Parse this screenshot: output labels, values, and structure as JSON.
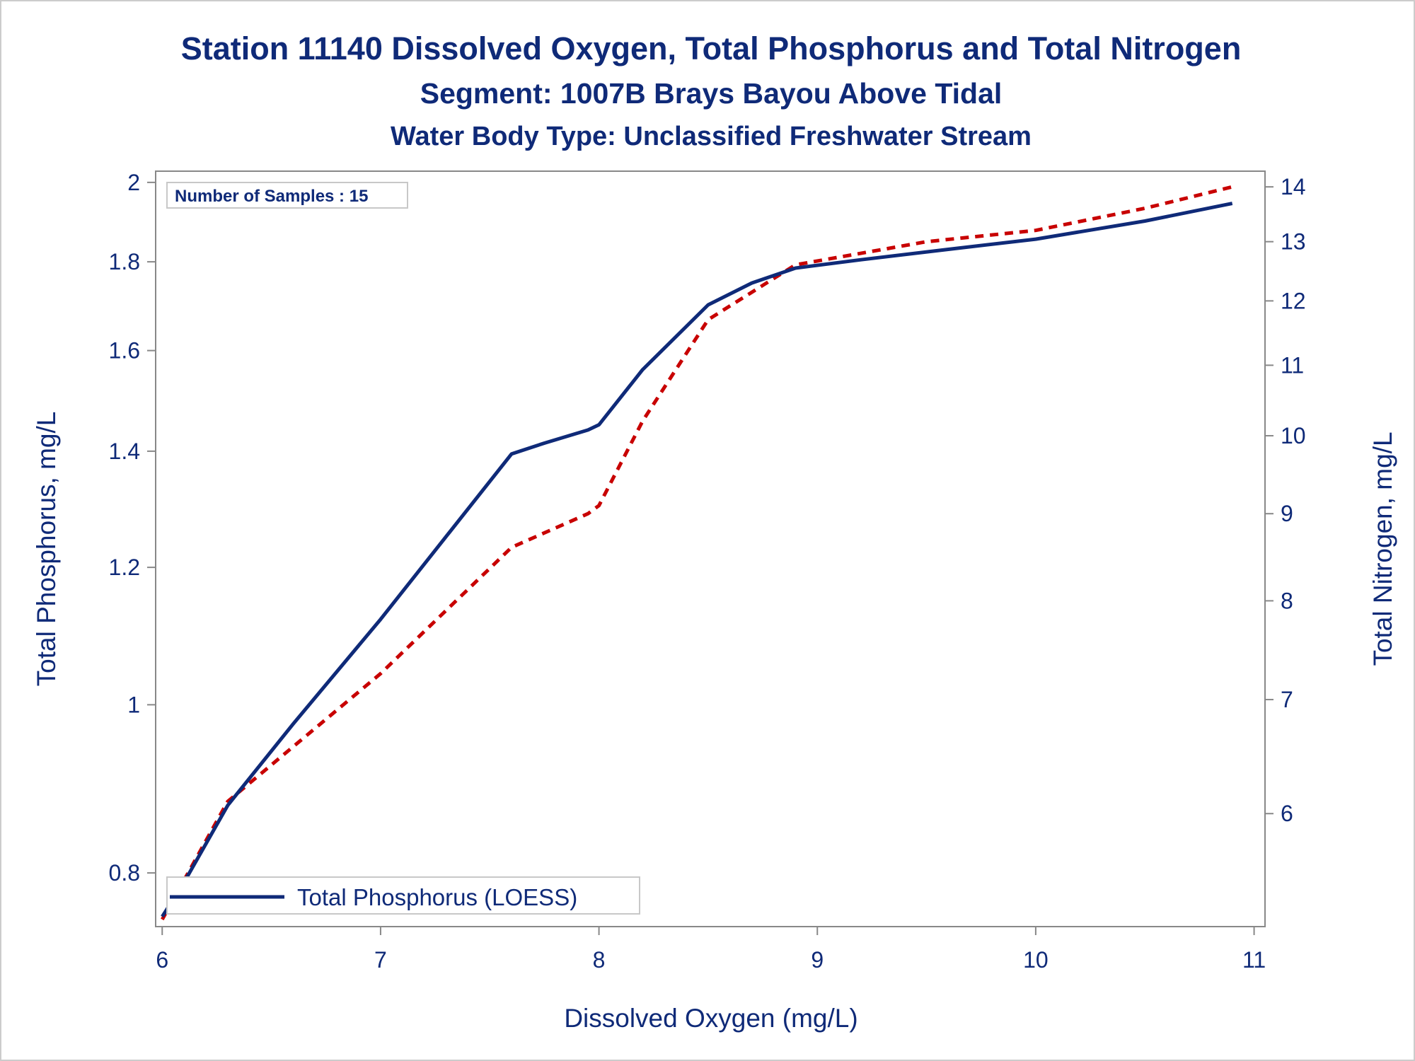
{
  "colors": {
    "text": "#0f2a78",
    "phosphorus_line": "#0f2a78",
    "nitrogen_line": "#c80000",
    "frame": "#888888"
  },
  "chart_data": {
    "type": "line",
    "title": "Station 11140  Dissolved Oxygen, Total Phosphorus and Total Nitrogen",
    "subtitle": "Segment: 1007B  Brays Bayou Above Tidal",
    "subtitle2": "Water Body Type: Unclassified Freshwater Stream",
    "xlabel": "Dissolved Oxygen (mg/L)",
    "ylabel_left": "Total Phosphorus, mg/L",
    "ylabel_right": "Total Nitrogen, mg/L",
    "xlim": [
      5.97,
      11.05
    ],
    "ylim_left": [
      0.745,
      2.03
    ],
    "ylim_right": [
      5.15,
      14.3
    ],
    "y_scale": "log",
    "x_ticks": [
      "6",
      "7",
      "8",
      "9",
      "10",
      "11"
    ],
    "y_left_ticks": [
      "0.8",
      "1",
      "1.2",
      "1.4",
      "1.6",
      "1.8",
      "2"
    ],
    "y_right_ticks": [
      "6",
      "7",
      "8",
      "9",
      "10",
      "11",
      "12",
      "13",
      "14"
    ],
    "sample_box_text": "Number of Samples : 15",
    "grid": false,
    "legend_position": "bottom-left",
    "series": [
      {
        "name": "Total Phosphorus (LOESS)",
        "axis": "left",
        "style": "solid",
        "color": "#0f2a78",
        "x": [
          6.0,
          6.1,
          6.3,
          6.6,
          7.0,
          7.3,
          7.6,
          7.75,
          7.95,
          8.0,
          8.2,
          8.5,
          8.7,
          8.9,
          9.2,
          9.6,
          10.0,
          10.5,
          10.9
        ],
        "y": [
          0.755,
          0.79,
          0.875,
          0.975,
          1.12,
          1.25,
          1.395,
          1.415,
          1.44,
          1.45,
          1.56,
          1.7,
          1.75,
          1.785,
          1.805,
          1.83,
          1.855,
          1.9,
          1.945
        ]
      },
      {
        "name": "Total Nitrogen",
        "axis": "right",
        "style": "dashed",
        "color": "#c80000",
        "x": [
          6.0,
          6.3,
          7.0,
          7.6,
          7.95,
          8.0,
          8.2,
          8.5,
          8.9,
          9.5,
          10.0,
          10.5,
          10.9
        ],
        "y": [
          5.2,
          6.1,
          7.25,
          8.6,
          9.0,
          9.1,
          10.2,
          11.7,
          12.6,
          13.0,
          13.2,
          13.6,
          14.0
        ]
      }
    ]
  }
}
